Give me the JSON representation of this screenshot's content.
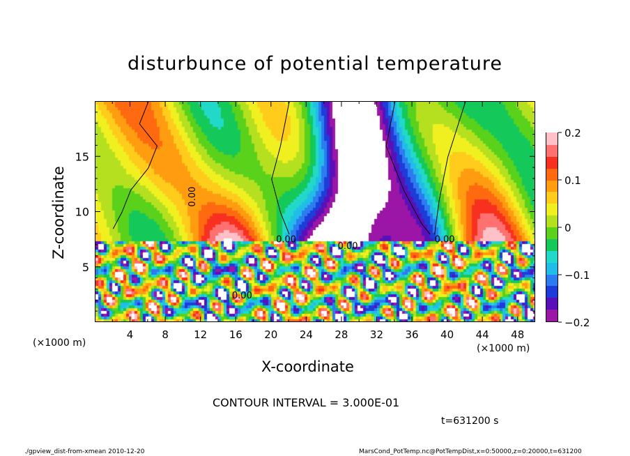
{
  "chart_data": {
    "type": "heatmap",
    "title": "disturbunce of potential temperature",
    "xlabel": "X-coordinate",
    "ylabel": "Z-coordinate",
    "x_unit": "(×1000 m)",
    "x_ticks": [
      "4",
      "8",
      "12",
      "16",
      "20",
      "24",
      "28",
      "32",
      "36",
      "40",
      "44",
      "48"
    ],
    "y_ticks": [
      "5",
      "10",
      "15"
    ],
    "xlim": [
      0,
      50
    ],
    "ylim": [
      0,
      20
    ],
    "colorbar": {
      "ticks": [
        "0.2",
        "0.1",
        "0",
        "−0.1",
        "−0.2"
      ],
      "range": [
        -0.2,
        0.2
      ],
      "colors": [
        "#9b16a6",
        "#5a10b8",
        "#1e3cd8",
        "#2c7cf0",
        "#22bce8",
        "#22d8c8",
        "#14c85a",
        "#5ad21c",
        "#b4e020",
        "#f0f020",
        "#ffcc1c",
        "#ff9c10",
        "#ff6a10",
        "#f83020",
        "#ff7070",
        "#ffc0c8"
      ]
    },
    "contour_labels": [
      "0.00",
      "0.00",
      "0.00",
      "0.00",
      "0.00"
    ],
    "contour_interval": "CONTOUR INTERVAL = 3.000E-01",
    "time": "t=631200 s",
    "footer_left": "./gpview_dist-from-xmean  2010-12-20",
    "footer_right": "MarsCond_PotTemp.nc@PotTempDist,x=0:50000,z=0:20000,t=631200"
  }
}
